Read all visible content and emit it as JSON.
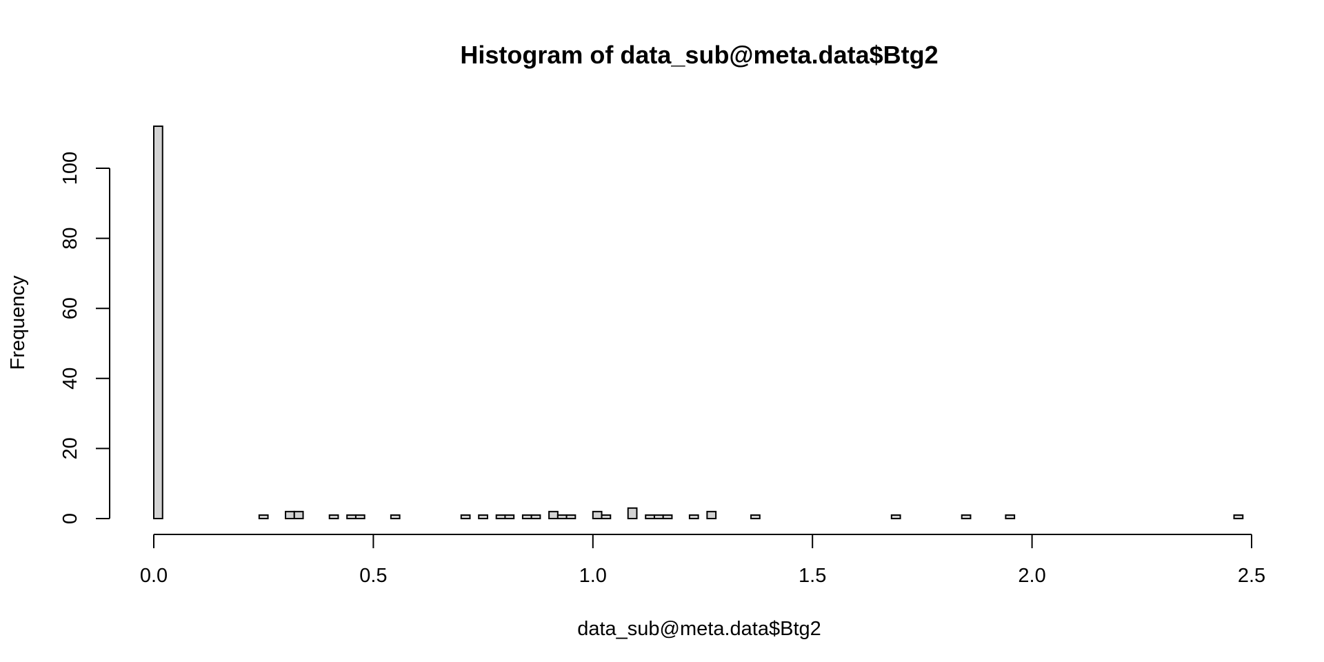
{
  "chart_data": {
    "type": "bar",
    "title": "Histogram of data_sub@meta.data$Btg2",
    "xlabel": "data_sub@meta.data$Btg2",
    "ylabel": "Frequency",
    "xlim": [
      0,
      2.5
    ],
    "ylim": [
      0,
      112
    ],
    "x_ticks": [
      "0.0",
      "0.5",
      "1.0",
      "1.5",
      "2.0",
      "2.5"
    ],
    "y_ticks": [
      "0",
      "20",
      "40",
      "60",
      "80",
      "100"
    ],
    "bin_width": 0.02,
    "grid": false,
    "legend": "none",
    "bar_fill": "#d3d3d3",
    "bar_stroke": "#000000",
    "bins": [
      {
        "start": 0.0,
        "end": 0.02,
        "count": 112
      },
      {
        "start": 0.24,
        "end": 0.26,
        "count": 1
      },
      {
        "start": 0.3,
        "end": 0.32,
        "count": 2
      },
      {
        "start": 0.32,
        "end": 0.34,
        "count": 2
      },
      {
        "start": 0.4,
        "end": 0.42,
        "count": 1
      },
      {
        "start": 0.44,
        "end": 0.46,
        "count": 1
      },
      {
        "start": 0.46,
        "end": 0.48,
        "count": 1
      },
      {
        "start": 0.54,
        "end": 0.56,
        "count": 1
      },
      {
        "start": 0.7,
        "end": 0.72,
        "count": 1
      },
      {
        "start": 0.74,
        "end": 0.76,
        "count": 1
      },
      {
        "start": 0.78,
        "end": 0.8,
        "count": 1
      },
      {
        "start": 0.8,
        "end": 0.82,
        "count": 1
      },
      {
        "start": 0.84,
        "end": 0.86,
        "count": 1
      },
      {
        "start": 0.86,
        "end": 0.88,
        "count": 1
      },
      {
        "start": 0.9,
        "end": 0.92,
        "count": 2
      },
      {
        "start": 0.92,
        "end": 0.94,
        "count": 1
      },
      {
        "start": 0.94,
        "end": 0.96,
        "count": 1
      },
      {
        "start": 1.0,
        "end": 1.02,
        "count": 2
      },
      {
        "start": 1.02,
        "end": 1.04,
        "count": 1
      },
      {
        "start": 1.08,
        "end": 1.1,
        "count": 3
      },
      {
        "start": 1.12,
        "end": 1.14,
        "count": 1
      },
      {
        "start": 1.14,
        "end": 1.16,
        "count": 1
      },
      {
        "start": 1.16,
        "end": 1.18,
        "count": 1
      },
      {
        "start": 1.22,
        "end": 1.24,
        "count": 1
      },
      {
        "start": 1.26,
        "end": 1.28,
        "count": 2
      },
      {
        "start": 1.36,
        "end": 1.38,
        "count": 1
      },
      {
        "start": 1.68,
        "end": 1.7,
        "count": 1
      },
      {
        "start": 1.84,
        "end": 1.86,
        "count": 1
      },
      {
        "start": 1.94,
        "end": 1.96,
        "count": 1
      },
      {
        "start": 2.46,
        "end": 2.48,
        "count": 1
      }
    ]
  }
}
